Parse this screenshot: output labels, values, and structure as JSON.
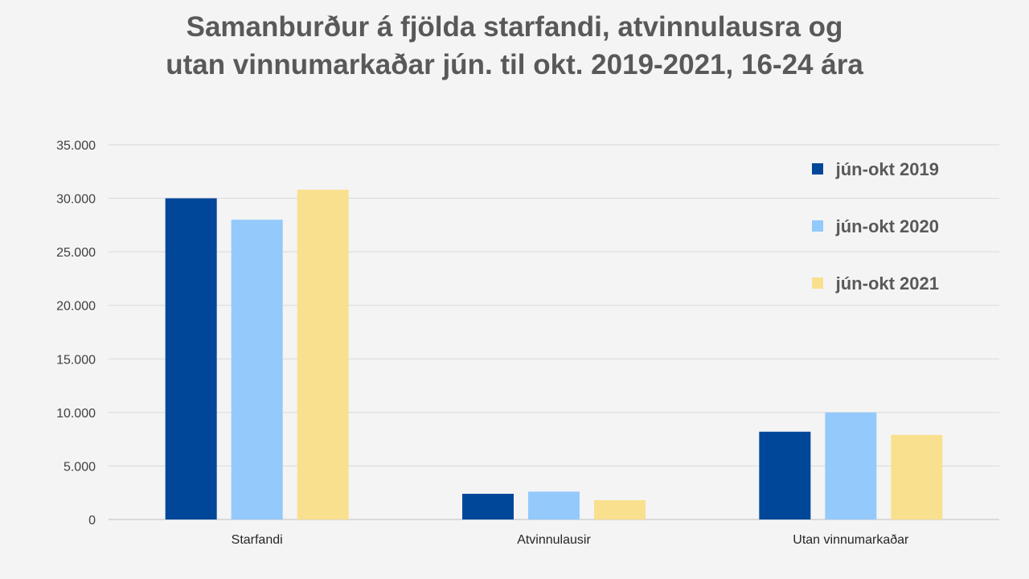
{
  "chart_data": {
    "type": "bar",
    "title_lines": [
      "Samanburður á fjölda starfandi, atvinnulausra og",
      "utan vinnumarkaðar jún. til okt. 2019-2021, 16-24 ára"
    ],
    "categories": [
      "Starfandi",
      "Atvinnulausir",
      "Utan vinnumarkaðar"
    ],
    "series": [
      {
        "name": "jún-okt 2019",
        "color": "#00479a",
        "values": [
          30000,
          2400,
          8200
        ]
      },
      {
        "name": "jún-okt 2020",
        "color": "#94c9fc",
        "values": [
          28000,
          2600,
          10000
        ]
      },
      {
        "name": "jún-okt 2021",
        "color": "#f8e08e",
        "values": [
          30800,
          1800,
          7900
        ]
      }
    ],
    "y_ticks": [
      "0",
      "5.000",
      "10.000",
      "15.000",
      "20.000",
      "25.000",
      "30.000",
      "35.000"
    ],
    "ylim": [
      0,
      35000
    ],
    "grid": true,
    "legend_position": "top-right"
  }
}
